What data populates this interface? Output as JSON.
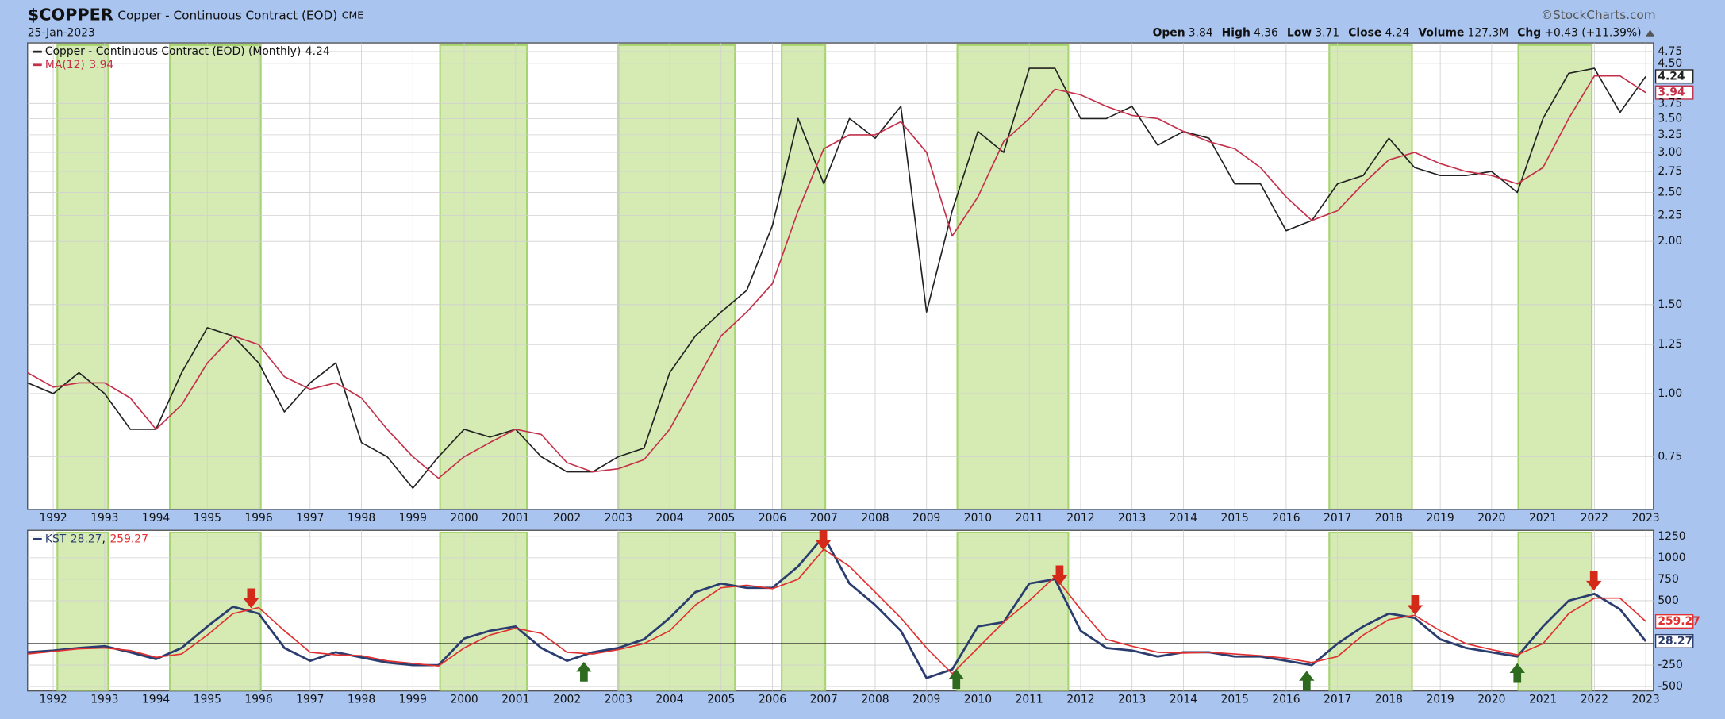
{
  "header": {
    "symbol": "$COPPER",
    "name": "Copper - Continuous Contract (EOD)",
    "exchange": "CME",
    "date": "25-Jan-2023",
    "credit": "©StockCharts.com",
    "stats": [
      {
        "label": "Open",
        "value": 3.84
      },
      {
        "label": "High",
        "value": 4.36
      },
      {
        "label": "Low",
        "value": 3.71
      },
      {
        "label": "Close",
        "value": 4.24
      },
      {
        "label": "Volume",
        "value": "127.3M"
      },
      {
        "label": "Chg",
        "value": "+0.43 (+11.39%)"
      }
    ]
  },
  "chart_data": [
    {
      "type": "line",
      "log_scale": true,
      "grid": true,
      "x": [
        1991.5,
        1992,
        1992.5,
        1993,
        1993.5,
        1994,
        1994.5,
        1995,
        1995.5,
        1996,
        1996.5,
        1997,
        1997.5,
        1998,
        1998.5,
        1999,
        1999.5,
        2000,
        2000.5,
        2001,
        2001.5,
        2002,
        2002.5,
        2003,
        2003.5,
        2004,
        2004.5,
        2005,
        2005.5,
        2006,
        2006.5,
        2007,
        2007.5,
        2008,
        2008.5,
        2009,
        2009.5,
        2010,
        2010.5,
        2011,
        2011.5,
        2012,
        2012.5,
        2013,
        2013.5,
        2014,
        2014.5,
        2015,
        2015.5,
        2016,
        2016.5,
        2017,
        2017.5,
        2018,
        2018.5,
        2019,
        2019.5,
        2020,
        2020.5,
        2021,
        2021.5,
        2022,
        2022.5,
        2023
      ],
      "series": [
        {
          "name": "Copper - Continuous Contract (EOD) (Monthly)",
          "color": "#222222",
          "last": 4.24,
          "values": [
            1.05,
            1.0,
            1.1,
            1.0,
            0.85,
            0.85,
            1.1,
            1.35,
            1.3,
            1.15,
            0.92,
            1.05,
            1.15,
            0.8,
            0.75,
            0.65,
            0.75,
            0.85,
            0.82,
            0.85,
            0.75,
            0.7,
            0.7,
            0.75,
            0.78,
            1.1,
            1.3,
            1.45,
            1.6,
            2.15,
            3.5,
            2.6,
            3.5,
            3.2,
            3.7,
            1.45,
            2.3,
            3.3,
            3.0,
            4.4,
            4.4,
            3.5,
            3.5,
            3.7,
            3.1,
            3.3,
            3.2,
            2.6,
            2.6,
            2.1,
            2.2,
            2.6,
            2.7,
            3.2,
            2.8,
            2.7,
            2.7,
            2.75,
            2.5,
            3.5,
            4.3,
            4.4,
            3.6,
            4.24
          ]
        },
        {
          "name": "MA(12)",
          "color": "#c4304a",
          "last": 3.94,
          "values": [
            1.1,
            1.03,
            1.05,
            1.05,
            0.98,
            0.85,
            0.95,
            1.15,
            1.3,
            1.25,
            1.08,
            1.02,
            1.05,
            0.98,
            0.85,
            0.75,
            0.68,
            0.75,
            0.8,
            0.85,
            0.83,
            0.73,
            0.7,
            0.71,
            0.74,
            0.85,
            1.05,
            1.3,
            1.45,
            1.65,
            2.3,
            3.05,
            3.25,
            3.25,
            3.45,
            3.0,
            2.05,
            2.45,
            3.15,
            3.5,
            4.0,
            3.9,
            3.7,
            3.55,
            3.5,
            3.3,
            3.15,
            3.05,
            2.8,
            2.45,
            2.2,
            2.3,
            2.6,
            2.9,
            3.0,
            2.85,
            2.75,
            2.7,
            2.6,
            2.8,
            3.5,
            4.25,
            4.25,
            3.94
          ]
        }
      ],
      "xlim": [
        1991.5,
        2023.15
      ],
      "xticks": [
        1992,
        1993,
        1994,
        1995,
        1996,
        1997,
        1998,
        1999,
        2000,
        2001,
        2002,
        2003,
        2004,
        2005,
        2006,
        2007,
        2008,
        2009,
        2010,
        2011,
        2012,
        2013,
        2014,
        2015,
        2016,
        2017,
        2018,
        2019,
        2020,
        2021,
        2022,
        2023
      ],
      "ylim": [
        0.59,
        4.94
      ],
      "yticks": [
        0.75,
        {
          "value": 1,
          "label": "1.00"
        },
        1.25,
        {
          "value": 1.5,
          "label": "1.50"
        },
        {
          "value": 2,
          "label": "2.00"
        },
        2.25,
        {
          "value": 2.5,
          "label": "2.50"
        },
        2.75,
        {
          "value": 3,
          "label": "3.00"
        },
        3.25,
        {
          "value": 3.5,
          "label": "3.50"
        },
        3.75,
        {
          "value": 4.5,
          "label": "4.50"
        },
        4.75
      ],
      "highlight_color": "#d6ebb4",
      "highlights": [
        [
          1992.08,
          1993.07
        ],
        [
          1994.27,
          1996.04
        ],
        [
          1999.53,
          2001.22
        ],
        [
          2003.0,
          2005.27
        ],
        [
          2006.18,
          2007.03
        ],
        [
          2009.6,
          2011.76
        ],
        [
          2016.84,
          2018.45
        ],
        [
          2020.52,
          2021.95
        ]
      ]
    },
    {
      "type": "line",
      "log_scale": false,
      "grid": true,
      "zero_line": true,
      "legend_separator": ",",
      "x": [
        1991.5,
        1992,
        1992.5,
        1993,
        1993.5,
        1994,
        1994.5,
        1995,
        1995.5,
        1996,
        1996.5,
        1997,
        1997.5,
        1998,
        1998.5,
        1999,
        1999.5,
        2000,
        2000.5,
        2001,
        2001.5,
        2002,
        2002.5,
        2003,
        2003.5,
        2004,
        2004.5,
        2005,
        2005.5,
        2006,
        2006.5,
        2007,
        2007.5,
        2008,
        2008.5,
        2009,
        2009.5,
        2010,
        2010.5,
        2011,
        2011.5,
        2012,
        2012.5,
        2013,
        2013.5,
        2014,
        2014.5,
        2015,
        2015.5,
        2016,
        2016.5,
        2017,
        2017.5,
        2018,
        2018.5,
        2019,
        2019.5,
        2020,
        2020.5,
        2021,
        2021.5,
        2022,
        2022.5,
        2023
      ],
      "series": [
        {
          "name": "KST",
          "color": "#2b3d6e",
          "last": 28.27,
          "values": [
            -100,
            -80,
            -50,
            -30,
            -100,
            -180,
            -50,
            200,
            430,
            350,
            -50,
            -200,
            -100,
            -160,
            -220,
            -250,
            -250,
            60,
            150,
            200,
            -50,
            -200,
            -100,
            -50,
            50,
            300,
            600,
            700,
            650,
            650,
            900,
            1250,
            700,
            450,
            150,
            -400,
            -300,
            200,
            250,
            700,
            750,
            150,
            -50,
            -80,
            -150,
            -100,
            -100,
            -150,
            -150,
            -200,
            -250,
            0,
            200,
            350,
            300,
            50,
            -50,
            -100,
            -150,
            200,
            500,
            580,
            400,
            28.27
          ]
        },
        {
          "color": "#e03030",
          "last": 259.27,
          "values": [
            -120,
            -90,
            -60,
            -50,
            -80,
            -160,
            -120,
            100,
            350,
            420,
            150,
            -100,
            -130,
            -140,
            -200,
            -230,
            -260,
            -50,
            100,
            180,
            120,
            -100,
            -120,
            -70,
            0,
            150,
            450,
            650,
            680,
            640,
            750,
            1100,
            900,
            600,
            300,
            -50,
            -350,
            -50,
            250,
            500,
            780,
            400,
            50,
            -30,
            -100,
            -110,
            -100,
            -120,
            -140,
            -170,
            -220,
            -150,
            100,
            280,
            330,
            150,
            0,
            -70,
            -130,
            0,
            350,
            530,
            530,
            259.27
          ]
        }
      ],
      "xlim": [
        1991.5,
        2023.15
      ],
      "xticks": [
        1992,
        1993,
        1994,
        1995,
        1996,
        1997,
        1998,
        1999,
        2000,
        2001,
        2002,
        2003,
        2004,
        2005,
        2006,
        2007,
        2008,
        2009,
        2010,
        2011,
        2012,
        2013,
        2014,
        2015,
        2016,
        2017,
        2018,
        2019,
        2020,
        2021,
        2022,
        2023
      ],
      "ylim": [
        -551,
        1320
      ],
      "yticks": [
        -500,
        -250,
        500,
        750,
        1000,
        1250
      ],
      "highlight_color": "#d6ebb4",
      "highlights": [
        [
          1992.08,
          1993.07
        ],
        [
          1994.27,
          1996.04
        ],
        [
          1999.53,
          2001.22
        ],
        [
          2003.0,
          2005.27
        ],
        [
          2006.18,
          2007.03
        ],
        [
          2009.6,
          2011.76
        ],
        [
          2016.84,
          2018.45
        ],
        [
          2020.52,
          2021.95
        ]
      ],
      "sell_color": "#d42a1a",
      "sell_signals": [
        1995.85,
        2006.99,
        2011.59,
        2018.51,
        2021.99
      ],
      "buy_color": "#2e6b1e",
      "buy_signals": [
        2002.33,
        2009.58,
        2016.4,
        2020.5
      ]
    }
  ]
}
